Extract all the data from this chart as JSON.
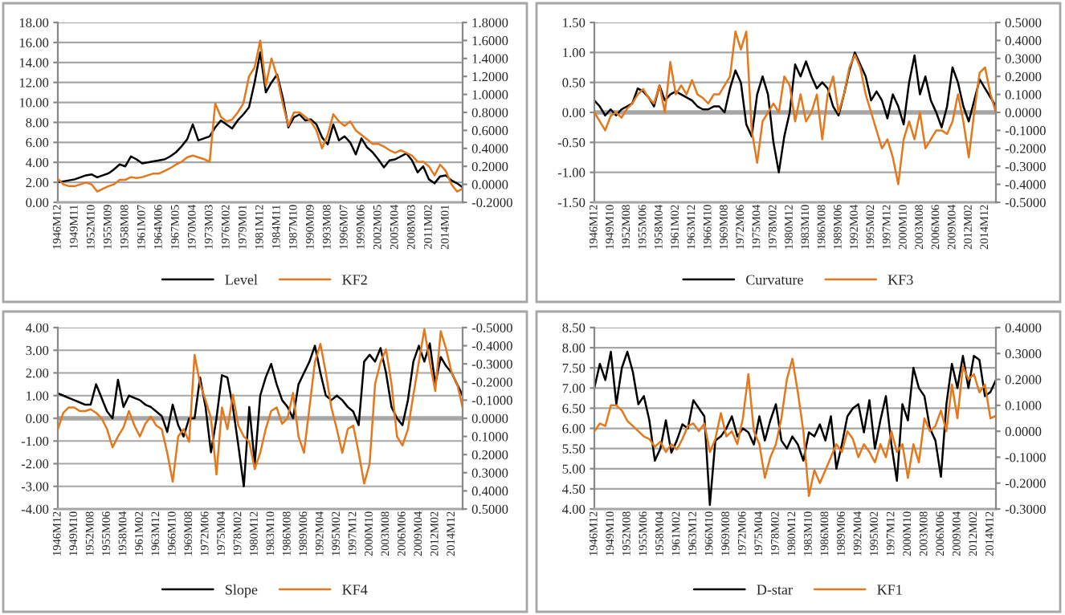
{
  "chart_data": [
    {
      "type": "line",
      "categories": [
        "1946M12",
        null,
        null,
        "1949M11",
        null,
        null,
        "1952M10",
        null,
        null,
        "1955M09",
        null,
        null,
        "1958M08",
        null,
        null,
        "1961M07",
        null,
        null,
        "1964M06",
        null,
        null,
        "1967M05",
        null,
        null,
        "1970M04",
        null,
        null,
        "1973M03",
        null,
        null,
        "1976M02",
        null,
        null,
        "1979M01",
        null,
        null,
        "1981M12",
        null,
        null,
        "1984M11",
        null,
        null,
        "1987M10",
        null,
        null,
        "1990M09",
        null,
        null,
        "1993M08",
        null,
        null,
        "1996M07",
        null,
        null,
        "1999M06",
        null,
        null,
        "2002M05",
        null,
        null,
        "2005M04",
        null,
        null,
        "2008M03",
        null,
        null,
        "2011M02",
        null,
        null,
        "2014M01",
        null,
        null,
        null
      ],
      "series": [
        {
          "name": "Level",
          "color": "#000000",
          "values": [
            2.0,
            2.1,
            2.2,
            2.3,
            2.5,
            2.7,
            2.8,
            2.5,
            2.7,
            2.9,
            3.3,
            3.8,
            3.6,
            4.6,
            4.3,
            3.9,
            4.0,
            4.1,
            4.2,
            4.3,
            4.6,
            5.0,
            5.6,
            6.3,
            7.8,
            6.2,
            6.4,
            6.6,
            7.5,
            8.2,
            7.8,
            7.4,
            8.2,
            8.8,
            9.5,
            12.0,
            15.0,
            11.0,
            12.0,
            12.8,
            10.5,
            7.5,
            8.5,
            8.8,
            8.2,
            8.3,
            7.8,
            6.5,
            5.8,
            7.8,
            6.2,
            6.6,
            6.0,
            4.8,
            6.4,
            5.5,
            5.0,
            4.3,
            3.5,
            4.2,
            4.3,
            4.6,
            4.9,
            4.2,
            3.0,
            3.6,
            2.3,
            1.9,
            2.6,
            2.7,
            2.2,
            1.9,
            1.5
          ]
        },
        {
          "name": "KF2",
          "color": "#e3781c",
          "axis": "y2",
          "values": [
            0.06,
            0.0,
            -0.02,
            -0.02,
            0.0,
            0.02,
            0.0,
            -0.08,
            -0.05,
            -0.02,
            0.0,
            0.05,
            0.05,
            0.08,
            0.07,
            0.08,
            0.1,
            0.12,
            0.12,
            0.15,
            0.18,
            0.22,
            0.25,
            0.3,
            0.32,
            0.3,
            0.28,
            0.25,
            0.9,
            0.75,
            0.7,
            0.72,
            0.8,
            0.9,
            1.2,
            1.3,
            1.6,
            1.1,
            1.4,
            1.2,
            0.9,
            0.65,
            0.8,
            0.8,
            0.75,
            0.7,
            0.6,
            0.4,
            0.55,
            0.78,
            0.7,
            0.65,
            0.7,
            0.6,
            0.55,
            0.5,
            0.45,
            0.45,
            0.42,
            0.38,
            0.35,
            0.38,
            0.35,
            0.32,
            0.25,
            0.25,
            0.2,
            0.1,
            0.22,
            0.15,
            0.0,
            -0.08,
            -0.05
          ]
        }
      ],
      "ylim": [
        0,
        18
      ],
      "yticks": [
        {
          "value": 0,
          "label": "0.00"
        },
        {
          "value": 2,
          "label": "2.00"
        },
        {
          "value": 4,
          "label": "4.00"
        },
        {
          "value": 6,
          "label": "6.00"
        },
        {
          "value": 8,
          "label": "8.00"
        },
        {
          "value": 10,
          "label": "10.00"
        },
        {
          "value": 12,
          "label": "12.00"
        },
        {
          "value": 14,
          "label": "14.00"
        },
        {
          "value": 16,
          "label": "16.00"
        },
        {
          "value": 18,
          "label": "18.00"
        }
      ],
      "y2lim": [
        -0.2,
        1.8
      ],
      "y2ticks": [
        {
          "value": -0.2,
          "label": "-0.2000"
        },
        {
          "value": 0,
          "label": "0.0000"
        },
        {
          "value": 0.2,
          "label": "0.2000"
        },
        {
          "value": 0.4,
          "label": "0.4000"
        },
        {
          "value": 0.6,
          "label": "0.6000"
        },
        {
          "value": 0.8,
          "label": "0.8000"
        },
        {
          "value": 1.0,
          "label": "1.0000"
        },
        {
          "value": 1.2,
          "label": "1.2000"
        },
        {
          "value": 1.4,
          "label": "1.4000"
        },
        {
          "value": 1.6,
          "label": "1.6000"
        },
        {
          "value": 1.8,
          "label": "1.8000"
        }
      ],
      "grid": "y",
      "legend": "bottom"
    },
    {
      "type": "line",
      "categories": [
        "1946M12",
        null,
        null,
        "1949M10",
        null,
        null,
        "1952M08",
        null,
        null,
        "1955M06",
        null,
        null,
        "1958M04",
        null,
        null,
        "1961M02",
        null,
        null,
        "1963M12",
        null,
        null,
        "1966M10",
        null,
        null,
        "1969M08",
        null,
        null,
        "1972M06",
        null,
        null,
        "1975M04",
        null,
        null,
        "1978M02",
        null,
        null,
        "1980M12",
        null,
        null,
        "1983M10",
        null,
        null,
        "1986M08",
        null,
        null,
        "1989M06",
        null,
        null,
        "1992M04",
        null,
        null,
        "1995M02",
        null,
        null,
        "1997M12",
        null,
        null,
        "2000M10",
        null,
        null,
        "2003M08",
        null,
        null,
        "2006M06",
        null,
        null,
        "2009M04",
        null,
        null,
        "2012M02",
        null,
        null,
        "2014M12",
        null,
        null
      ],
      "series": [
        {
          "name": "Curvature",
          "color": "#000000",
          "values": [
            0.2,
            0.1,
            -0.05,
            0.05,
            -0.05,
            0.05,
            0.1,
            0.15,
            0.4,
            0.35,
            0.25,
            0.1,
            0.45,
            0.2,
            0.3,
            0.35,
            0.3,
            0.25,
            0.2,
            0.1,
            0.05,
            0.05,
            0.1,
            0.1,
            0.0,
            0.4,
            0.7,
            0.5,
            -0.2,
            -0.4,
            0.3,
            0.6,
            0.3,
            -0.5,
            -1.0,
            -0.4,
            0.0,
            0.8,
            0.6,
            0.85,
            0.6,
            0.4,
            0.5,
            0.4,
            0.1,
            -0.05,
            0.3,
            0.7,
            1.0,
            0.8,
            0.6,
            0.2,
            0.35,
            0.2,
            -0.1,
            0.3,
            0.1,
            -0.2,
            0.5,
            0.95,
            0.3,
            0.6,
            0.2,
            0.0,
            -0.25,
            0.1,
            0.75,
            0.5,
            0.1,
            -0.15,
            0.2,
            0.55,
            0.4,
            0.25,
            0.1
          ]
        },
        {
          "name": "KF3",
          "color": "#e3781c",
          "axis": "y2",
          "values": [
            0.0,
            -0.05,
            -0.1,
            -0.02,
            0.0,
            -0.03,
            0.02,
            0.05,
            0.1,
            0.13,
            0.08,
            0.05,
            0.15,
            0.0,
            0.28,
            0.1,
            0.15,
            0.1,
            0.18,
            0.1,
            0.08,
            0.05,
            0.1,
            0.1,
            0.15,
            0.2,
            0.45,
            0.35,
            0.45,
            -0.1,
            -0.28,
            -0.05,
            0.0,
            0.05,
            0.0,
            0.2,
            0.15,
            -0.05,
            0.1,
            -0.05,
            0.0,
            0.1,
            -0.15,
            0.1,
            0.2,
            0.0,
            0.1,
            0.25,
            0.32,
            0.25,
            0.1,
            0.0,
            -0.1,
            -0.2,
            -0.15,
            -0.25,
            -0.4,
            -0.15,
            -0.05,
            -0.15,
            0.0,
            -0.2,
            -0.15,
            -0.1,
            -0.1,
            -0.12,
            -0.05,
            0.1,
            -0.05,
            -0.25,
            0.0,
            0.22,
            0.25,
            0.1,
            0.0
          ]
        }
      ],
      "ylim": [
        -1.5,
        1.5
      ],
      "yticks": [
        {
          "value": -1.5,
          "label": "-1.50"
        },
        {
          "value": -1.0,
          "label": "-1.00"
        },
        {
          "value": -0.5,
          "label": "-0.50"
        },
        {
          "value": 0,
          "label": "0.00"
        },
        {
          "value": 0.5,
          "label": "0.50"
        },
        {
          "value": 1.0,
          "label": "1.00"
        },
        {
          "value": 1.5,
          "label": "1.50"
        }
      ],
      "y2lim": [
        -0.5,
        0.5
      ],
      "y2ticks": [
        {
          "value": -0.5,
          "label": "-0.5000"
        },
        {
          "value": -0.4,
          "label": "-0.4000"
        },
        {
          "value": -0.3,
          "label": "-0.3000"
        },
        {
          "value": -0.2,
          "label": "-0.2000"
        },
        {
          "value": -0.1,
          "label": "-0.1000"
        },
        {
          "value": 0,
          "label": "0.0000"
        },
        {
          "value": 0.1,
          "label": "0.1000"
        },
        {
          "value": 0.2,
          "label": "0.2000"
        },
        {
          "value": 0.3,
          "label": "0.3000"
        },
        {
          "value": 0.4,
          "label": "0.4000"
        },
        {
          "value": 0.5,
          "label": "0.5000"
        }
      ],
      "ref_lines": [
        {
          "axis": "y",
          "value": 0,
          "color": "#a6a6a6"
        }
      ],
      "grid": "y",
      "legend": "bottom"
    },
    {
      "type": "line",
      "categories": [
        "1946M12",
        null,
        null,
        "1949M10",
        null,
        null,
        "1952M08",
        null,
        null,
        "1955M06",
        null,
        null,
        "1958M04",
        null,
        null,
        "1961M02",
        null,
        null,
        "1963M12",
        null,
        null,
        "1966M10",
        null,
        null,
        "1969M08",
        null,
        null,
        "1972M06",
        null,
        null,
        "1975M04",
        null,
        null,
        "1978M02",
        null,
        null,
        "1980M12",
        null,
        null,
        "1983M10",
        null,
        null,
        "1986M08",
        null,
        null,
        "1989M06",
        null,
        null,
        "1992M04",
        null,
        null,
        "1995M02",
        null,
        null,
        "1997M12",
        null,
        null,
        "2000M10",
        null,
        null,
        "2003M08",
        null,
        null,
        "2006M06",
        null,
        null,
        "2009M04",
        null,
        null,
        "2012M02",
        null,
        null,
        "2014M12",
        null,
        null
      ],
      "series": [
        {
          "name": "Slope",
          "color": "#000000",
          "values": [
            1.1,
            1.0,
            0.9,
            0.8,
            0.7,
            0.6,
            0.6,
            1.5,
            0.9,
            0.3,
            0.0,
            1.7,
            0.5,
            1.0,
            0.9,
            0.8,
            0.6,
            0.5,
            0.3,
            0.1,
            -0.6,
            0.6,
            -0.3,
            -0.8,
            0.0,
            0.0,
            1.8,
            0.5,
            -1.5,
            0.0,
            1.9,
            1.8,
            0.5,
            -1.2,
            -3.0,
            0.5,
            -2.0,
            1.0,
            1.8,
            2.4,
            1.5,
            0.8,
            0.5,
            0.0,
            1.5,
            2.0,
            2.5,
            3.2,
            2.0,
            1.0,
            0.8,
            1.0,
            0.8,
            0.5,
            0.3,
            -0.3,
            2.5,
            2.8,
            2.5,
            3.1,
            2.0,
            0.5,
            0.0,
            -0.3,
            0.8,
            2.5,
            3.2,
            2.5,
            3.3,
            1.5,
            2.7,
            2.3,
            2.0,
            1.5,
            1.0
          ]
        },
        {
          "name": "KF4",
          "color": "#e3781c",
          "axis": "y2",
          "values": [
            0.06,
            -0.03,
            -0.06,
            -0.06,
            -0.04,
            -0.04,
            -0.05,
            -0.03,
            0.0,
            0.06,
            0.16,
            0.1,
            0.05,
            -0.04,
            0.04,
            0.1,
            0.03,
            -0.01,
            0.04,
            0.06,
            0.19,
            0.35,
            0.1,
            0.06,
            0.13,
            -0.35,
            -0.19,
            -0.1,
            0.0,
            0.31,
            -0.06,
            0.06,
            -0.13,
            0.04,
            0.1,
            0.13,
            0.28,
            0.19,
            0.06,
            -0.04,
            -0.06,
            0.03,
            0.0,
            -0.14,
            0.1,
            0.19,
            -0.06,
            -0.31,
            -0.41,
            -0.25,
            -0.06,
            0.06,
            0.19,
            0.06,
            0.04,
            0.19,
            0.36,
            0.25,
            -0.19,
            -0.31,
            -0.38,
            -0.19,
            0.1,
            0.15,
            0.06,
            -0.13,
            -0.31,
            -0.49,
            -0.31,
            -0.15,
            -0.48,
            -0.38,
            -0.25,
            -0.19,
            -0.06
          ]
        }
      ],
      "ylim": [
        -4,
        4
      ],
      "yticks": [
        {
          "value": -4,
          "label": "-4.00"
        },
        {
          "value": -3,
          "label": "-3.00"
        },
        {
          "value": -2,
          "label": "-2.00"
        },
        {
          "value": -1,
          "label": "-1.00"
        },
        {
          "value": 0,
          "label": "0.00"
        },
        {
          "value": 1,
          "label": "1.00"
        },
        {
          "value": 2,
          "label": "2.00"
        },
        {
          "value": 3,
          "label": "3.00"
        },
        {
          "value": 4,
          "label": "4.00"
        }
      ],
      "y2lim": [
        0.5,
        -0.5
      ],
      "y2ticks": [
        {
          "value": -0.5,
          "label": "-0.5000"
        },
        {
          "value": -0.4,
          "label": "-0.4000"
        },
        {
          "value": -0.3,
          "label": "-0.3000"
        },
        {
          "value": -0.2,
          "label": "-0.2000"
        },
        {
          "value": -0.1,
          "label": "-0.1000"
        },
        {
          "value": 0,
          "label": "0.0000"
        },
        {
          "value": 0.1,
          "label": "0.1000"
        },
        {
          "value": 0.2,
          "label": "0.2000"
        },
        {
          "value": 0.3,
          "label": "0.3000"
        },
        {
          "value": 0.4,
          "label": "0.4000"
        },
        {
          "value": 0.5,
          "label": "0.5000"
        }
      ],
      "ref_lines": [
        {
          "axis": "y",
          "value": 0,
          "color": "#a6a6a6"
        }
      ],
      "grid": "y",
      "legend": "bottom"
    },
    {
      "type": "line",
      "categories": [
        "1946M12",
        null,
        null,
        "1949M10",
        null,
        null,
        "1952M08",
        null,
        null,
        "1955M06",
        null,
        null,
        "1958M04",
        null,
        null,
        "1961M02",
        null,
        null,
        "1963M12",
        null,
        null,
        "1966M10",
        null,
        null,
        "1969M08",
        null,
        null,
        "1972M06",
        null,
        null,
        "1975M04",
        null,
        null,
        "1978M02",
        null,
        null,
        "1980M12",
        null,
        null,
        "1983M10",
        null,
        null,
        "1986M08",
        null,
        null,
        "1989M06",
        null,
        null,
        "1992M04",
        null,
        null,
        "1995M02",
        null,
        null,
        "1997M12",
        null,
        null,
        "2000M10",
        null,
        null,
        "2003M08",
        null,
        null,
        "2006M06",
        null,
        null,
        "2009M04",
        null,
        null,
        "2012M02",
        null,
        null,
        "2014M12",
        null
      ],
      "series": [
        {
          "name": "D-star",
          "color": "#000000",
          "values": [
            7.0,
            7.6,
            7.2,
            7.9,
            6.6,
            7.5,
            7.9,
            7.4,
            6.6,
            6.8,
            6.2,
            5.2,
            5.5,
            6.2,
            5.4,
            5.7,
            6.1,
            6.0,
            6.7,
            6.5,
            6.3,
            4.1,
            5.7,
            5.8,
            6.0,
            6.3,
            5.8,
            6.0,
            5.9,
            5.6,
            6.3,
            5.7,
            6.2,
            6.6,
            5.7,
            5.5,
            5.8,
            5.6,
            5.2,
            5.9,
            5.8,
            6.1,
            5.7,
            6.3,
            5.0,
            5.6,
            6.3,
            6.5,
            6.6,
            5.9,
            6.7,
            5.5,
            6.2,
            6.8,
            5.6,
            4.7,
            6.6,
            6.2,
            7.5,
            7.0,
            6.8,
            6.0,
            5.7,
            4.8,
            6.6,
            7.6,
            7.0,
            7.8,
            7.0,
            7.8,
            7.7,
            6.8,
            6.9,
            7.2
          ]
        },
        {
          "name": "KF1",
          "color": "#e3781c",
          "axis": "y2",
          "values": [
            0.0,
            0.03,
            0.02,
            0.1,
            0.1,
            0.08,
            0.04,
            0.02,
            0.0,
            -0.02,
            -0.03,
            -0.06,
            -0.04,
            -0.08,
            -0.05,
            -0.07,
            -0.03,
            0.02,
            0.03,
            0.0,
            0.03,
            -0.08,
            -0.03,
            0.07,
            -0.02,
            0.0,
            -0.05,
            0.05,
            0.22,
            0.0,
            -0.05,
            -0.18,
            -0.1,
            -0.05,
            0.05,
            0.2,
            0.28,
            0.15,
            0.0,
            -0.25,
            -0.15,
            -0.2,
            -0.15,
            -0.1,
            -0.05,
            -0.08,
            0.0,
            -0.03,
            -0.1,
            -0.05,
            -0.08,
            -0.12,
            -0.05,
            -0.1,
            0.0,
            -0.08,
            -0.05,
            -0.18,
            -0.05,
            -0.12,
            0.05,
            0.0,
            0.02,
            0.08,
            0.0,
            0.18,
            0.05,
            0.25,
            0.2,
            0.22,
            0.15,
            0.18,
            0.05,
            0.06
          ]
        }
      ],
      "ylim": [
        4,
        8.5
      ],
      "yticks": [
        {
          "value": 4,
          "label": "4.00"
        },
        {
          "value": 4.5,
          "label": "4.50"
        },
        {
          "value": 5,
          "label": "5.00"
        },
        {
          "value": 5.5,
          "label": "5.50"
        },
        {
          "value": 6,
          "label": "6.00"
        },
        {
          "value": 6.5,
          "label": "6.50"
        },
        {
          "value": 7,
          "label": "7.00"
        },
        {
          "value": 7.5,
          "label": "7.50"
        },
        {
          "value": 8,
          "label": "8.00"
        },
        {
          "value": 8.5,
          "label": "8.50"
        }
      ],
      "y2lim": [
        -0.3,
        0.4
      ],
      "y2ticks": [
        {
          "value": -0.3,
          "label": "-0.3000"
        },
        {
          "value": -0.2,
          "label": "-0.2000"
        },
        {
          "value": -0.1,
          "label": "-0.1000"
        },
        {
          "value": 0,
          "label": "0.0000"
        },
        {
          "value": 0.1,
          "label": "0.1000"
        },
        {
          "value": 0.2,
          "label": "0.2000"
        },
        {
          "value": 0.3,
          "label": "0.3000"
        },
        {
          "value": 0.4,
          "label": "0.4000"
        }
      ],
      "grid": "y",
      "legend": "bottom"
    }
  ]
}
